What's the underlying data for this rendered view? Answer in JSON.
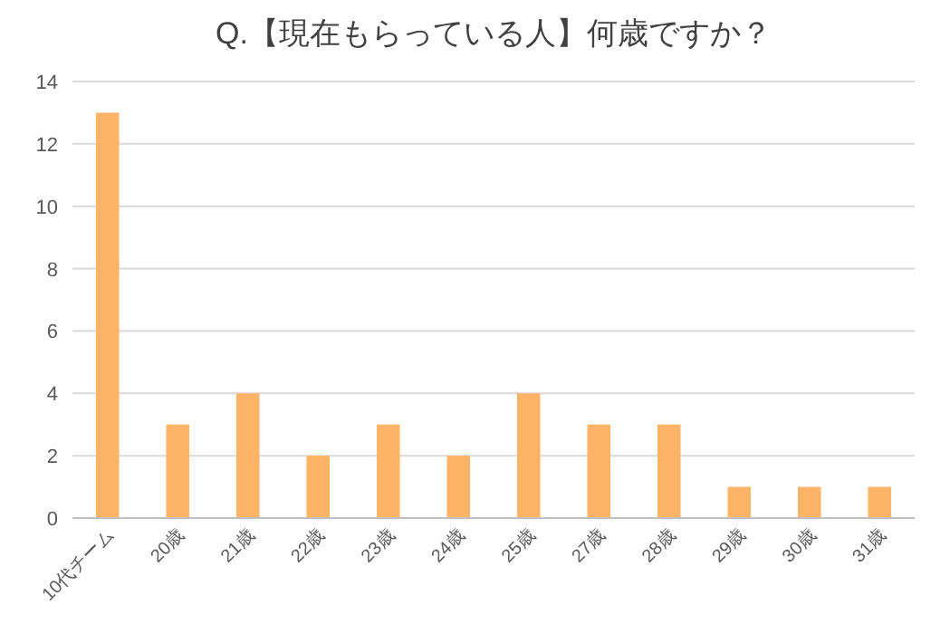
{
  "chart_data": {
    "type": "bar",
    "title": "Q.【現在もらっている人】何歳ですか？",
    "categories": [
      "10代チーム",
      "20歳",
      "21歳",
      "22歳",
      "23歳",
      "24歳",
      "25歳",
      "27歳",
      "28歳",
      "29歳",
      "30歳",
      "31歳"
    ],
    "values": [
      13,
      3,
      4,
      2,
      3,
      2,
      4,
      3,
      3,
      1,
      1,
      1
    ],
    "color": "#ffb366",
    "ylim": [
      0,
      14
    ],
    "yticks": [
      0,
      2,
      4,
      6,
      8,
      10,
      12,
      14
    ],
    "grid": "y"
  }
}
